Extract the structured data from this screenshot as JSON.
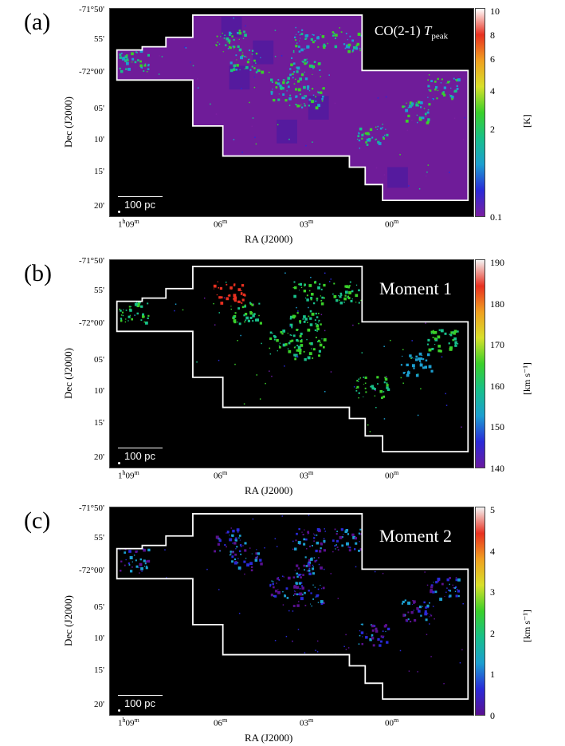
{
  "panels": [
    {
      "label": "(a)",
      "title_main": "CO(2-1) ",
      "title_italic": "T",
      "title_sub": "peak",
      "colorbar_unit": "[K]",
      "colorbar_ticks": [
        "10",
        "8",
        "6",
        "4",
        "2",
        "0.1"
      ],
      "colors": [
        "#7a1fa0",
        "#2a2ad8",
        "#1c9fd0",
        "#18c08a",
        "#3ad02a",
        "#d8e02a",
        "#f0a020",
        "#e83020",
        "#ffffff"
      ]
    },
    {
      "label": "(b)",
      "title_main": "Moment 1",
      "colorbar_unit": "[km s⁻¹]",
      "colorbar_ticks": [
        "190",
        "180",
        "170",
        "160",
        "150",
        "140"
      ],
      "colors": [
        "#6a1aa0",
        "#2a2ad8",
        "#1c9fd0",
        "#18c08a",
        "#3ad02a",
        "#d8e02a",
        "#f0a020",
        "#e83020",
        "#f4f4f4"
      ]
    },
    {
      "label": "(c)",
      "title_main": "Moment 2",
      "colorbar_unit": "[km s⁻¹]",
      "colorbar_ticks": [
        "5",
        "4",
        "3",
        "2",
        "1",
        "0"
      ],
      "colors": [
        "#5a1090",
        "#2a2ad8",
        "#1c9fd0",
        "#18c08a",
        "#3ad02a",
        "#d8e02a",
        "#f0a020",
        "#e83020",
        "#f4f4f4"
      ]
    }
  ],
  "axes": {
    "dec_ticks": [
      "-71°50'",
      "55'",
      "-72°00'",
      "05'",
      "10'",
      "15'",
      "20'"
    ],
    "ra_ticks": [
      {
        "main": "1",
        "sup1": "h",
        "mid": "09",
        "sup2": "m"
      },
      {
        "main": "06",
        "sup2": "m"
      },
      {
        "main": "03",
        "sup2": "m"
      },
      {
        "main": "00",
        "sup2": "m"
      }
    ],
    "xlabel": "RA (J2000)",
    "ylabel": "Dec (J2000)"
  },
  "scale_bar_label": "100 pc"
}
